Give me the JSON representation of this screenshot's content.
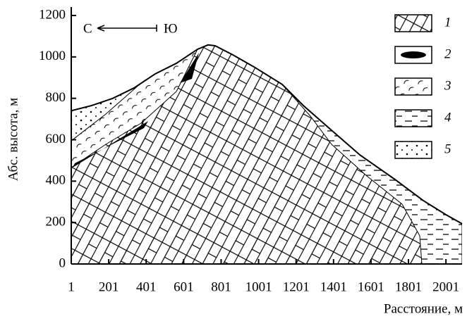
{
  "chart_data": {
    "type": "profile",
    "x_label": "Расстояние, м",
    "y_label": "Абс. высота, м",
    "annotations": [
      "С",
      "Ю"
    ],
    "x": [
      1,
      110,
      223,
      336,
      449,
      562,
      675,
      731,
      769,
      863,
      976,
      1127,
      1240,
      1390,
      1541,
      1729,
      1880,
      2001,
      2087
    ],
    "series": [
      {
        "color": "#000000",
        "values": [
          740,
          765,
          800,
          850,
          918,
          969,
          1037,
          1058,
          1054,
          1010,
          952,
          867,
          765,
          646,
          527,
          408,
          306,
          238,
          194
        ]
      }
    ],
    "xlim": [
      1,
      2087
    ],
    "ylim": [
      0,
      1200
    ],
    "xticks": [
      1,
      201,
      401,
      601,
      801,
      1001,
      1201,
      1401,
      1601,
      1801,
      2001
    ],
    "yticks": [
      0,
      200,
      400,
      600,
      800,
      1000,
      1200
    ],
    "legend": [
      {
        "label": "1"
      },
      {
        "label": "2"
      },
      {
        "label": "3"
      },
      {
        "label": "4"
      },
      {
        "label": "5"
      }
    ]
  }
}
